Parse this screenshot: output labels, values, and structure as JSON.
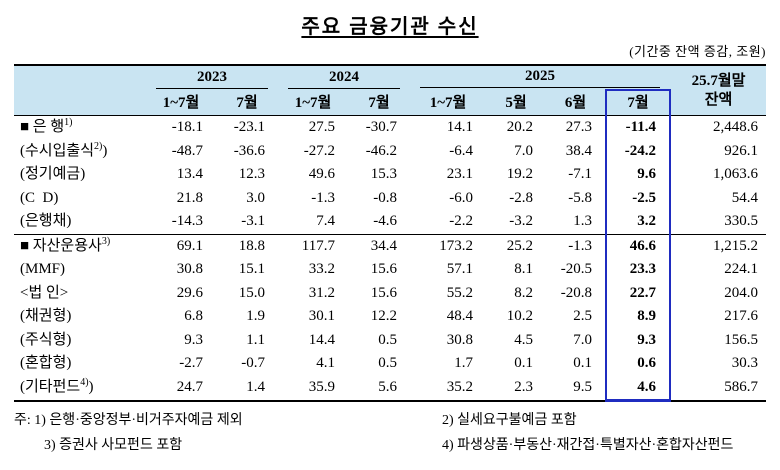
{
  "title": "주요 금융기관 수신",
  "subtitle": "(기간중 잔액 증감, 조원)",
  "table": {
    "years": [
      "2023",
      "2024",
      "2025"
    ],
    "balance_line1": "25.7월말",
    "balance_line2": "잔액",
    "subcols": [
      "1~7월",
      "7월",
      "1~7월",
      "7월",
      "1~7월",
      "5월",
      "6월",
      "7월"
    ],
    "rows": [
      {
        "pre": "■ 은 행",
        "sup": "1)",
        "post": "",
        "values": [
          "-18.1",
          "-23.1",
          "27.5",
          "-30.7",
          "14.1",
          "20.2",
          "27.3",
          "-11.4",
          "2,448.6"
        ]
      },
      {
        "pre": "(수시입출식",
        "sup": "2)",
        "post": ")",
        "values": [
          "-48.7",
          "-36.6",
          "-27.2",
          "-46.2",
          "-6.4",
          "7.0",
          "38.4",
          "-24.2",
          "926.1"
        ]
      },
      {
        "pre": "(정기예금)",
        "sup": "",
        "post": "",
        "values": [
          "13.4",
          "12.3",
          "49.6",
          "15.3",
          "23.1",
          "19.2",
          "-7.1",
          "9.6",
          "1,063.6"
        ]
      },
      {
        "pre": "(C D)",
        "sup": "",
        "post": "",
        "values": [
          "21.8",
          "3.0",
          "-1.3",
          "-0.8",
          "-6.0",
          "-2.8",
          "-5.8",
          "-2.5",
          "54.4"
        ]
      },
      {
        "pre": "(은행채)",
        "sup": "",
        "post": "",
        "values": [
          "-14.3",
          "-3.1",
          "7.4",
          "-4.6",
          "-2.2",
          "-3.2",
          "1.3",
          "3.2",
          "330.5"
        ]
      },
      {
        "pre": "■ 자산운용사",
        "sup": "3)",
        "post": "",
        "rule": true,
        "values": [
          "69.1",
          "18.8",
          "117.7",
          "34.4",
          "173.2",
          "25.2",
          "-1.3",
          "46.6",
          "1,215.2"
        ]
      },
      {
        "pre": "(MMF)",
        "sup": "",
        "post": "",
        "values": [
          "30.8",
          "15.1",
          "33.2",
          "15.6",
          "57.1",
          "8.1",
          "-20.5",
          "23.3",
          "224.1"
        ]
      },
      {
        "pre": "<법 인>",
        "sup": "",
        "post": "",
        "values": [
          "29.6",
          "15.0",
          "31.2",
          "15.6",
          "55.2",
          "8.2",
          "-20.8",
          "22.7",
          "204.0"
        ]
      },
      {
        "pre": "(채권형)",
        "sup": "",
        "post": "",
        "values": [
          "6.8",
          "1.9",
          "30.1",
          "12.2",
          "48.4",
          "10.2",
          "2.5",
          "8.9",
          "217.6"
        ]
      },
      {
        "pre": "(주식형)",
        "sup": "",
        "post": "",
        "values": [
          "9.3",
          "1.1",
          "14.4",
          "0.5",
          "30.8",
          "4.5",
          "7.0",
          "9.3",
          "156.5"
        ]
      },
      {
        "pre": "(혼합형)",
        "sup": "",
        "post": "",
        "values": [
          "-2.7",
          "-0.7",
          "4.1",
          "0.5",
          "1.7",
          "0.1",
          "0.1",
          "0.6",
          "30.3"
        ]
      },
      {
        "pre": "(기타펀드",
        "sup": "4)",
        "post": ")",
        "values": [
          "24.7",
          "1.4",
          "35.9",
          "5.6",
          "35.2",
          "2.3",
          "9.5",
          "4.6",
          "586.7"
        ]
      }
    ]
  },
  "notes": {
    "line1_left": "주: 1) 은행·중앙정부·비거주자예금 제외",
    "line1_right": "2) 실세요구불예금 포함",
    "line2_left": "3) 증권사 사모펀드 포함",
    "line2_right": "4) 파생상품·부동산·재간접·특별자산·혼합자산펀드"
  }
}
